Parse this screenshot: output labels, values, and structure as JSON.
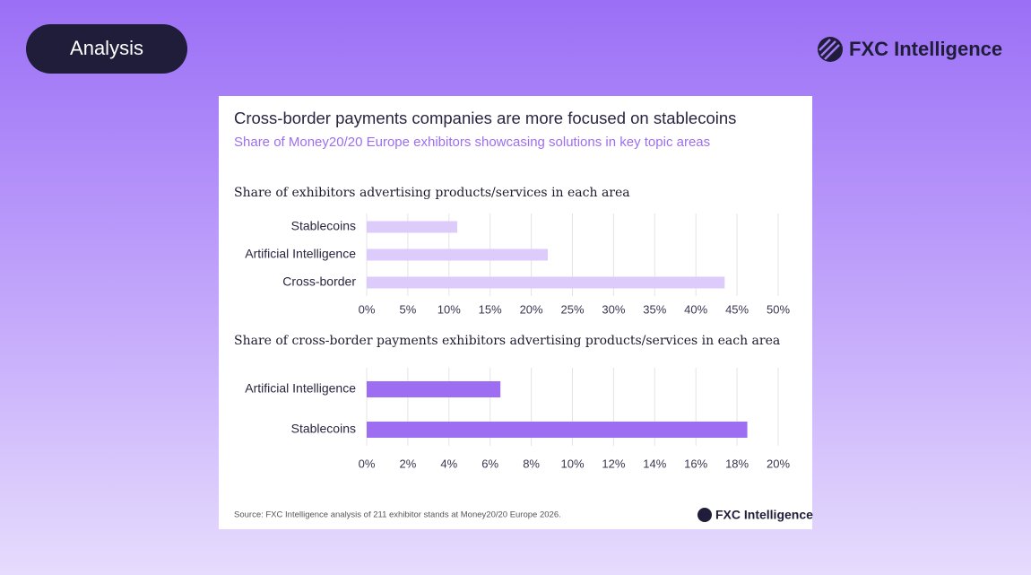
{
  "badge": "Analysis",
  "logo": "FXC Intelligence",
  "header": {
    "title": "Cross-border payments companies are more focused on stablecoins",
    "subtitle": "Share of Money20/20 Europe exhibitors showcasing solutions in key topic areas"
  },
  "chart_data": [
    {
      "type": "hbar",
      "title": "Share of exhibitors advertising products/services in each area",
      "categories": [
        "Stablecoins",
        "Artificial Intelligence",
        "Cross-border"
      ],
      "values": [
        11,
        22,
        43.5
      ],
      "color": "#dccbfb",
      "xlim": [
        0,
        50
      ],
      "xticks": [
        {
          "value": 0,
          "label": "0%"
        },
        {
          "value": 5,
          "label": "5%"
        },
        {
          "value": 10,
          "label": "10%"
        },
        {
          "value": 15,
          "label": "15%"
        },
        {
          "value": 20,
          "label": "20%"
        },
        {
          "value": 25,
          "label": "25%"
        },
        {
          "value": 30,
          "label": "30%"
        },
        {
          "value": 35,
          "label": "35%"
        },
        {
          "value": 40,
          "label": "40%"
        },
        {
          "value": 45,
          "label": "45%"
        },
        {
          "value": 50,
          "label": "50%"
        }
      ],
      "grid": true
    },
    {
      "type": "hbar",
      "title": "Share of cross-border payments exhibitors advertising products/services in each area",
      "categories": [
        "Artificial Intelligence",
        "Stablecoins"
      ],
      "values": [
        6.5,
        18.5
      ],
      "color": "#9d6ef2",
      "xlim": [
        0,
        20
      ],
      "xticks": [
        {
          "value": 0,
          "label": "0%"
        },
        {
          "value": 2,
          "label": "2%"
        },
        {
          "value": 4,
          "label": "4%"
        },
        {
          "value": 6,
          "label": "6%"
        },
        {
          "value": 8,
          "label": "8%"
        },
        {
          "value": 10,
          "label": "10%"
        },
        {
          "value": 12,
          "label": "12%"
        },
        {
          "value": 14,
          "label": "14%"
        },
        {
          "value": 16,
          "label": "16%"
        },
        {
          "value": 18,
          "label": "18%"
        },
        {
          "value": 20,
          "label": "20%"
        }
      ],
      "grid": true
    }
  ],
  "source": "Source: FXC Intelligence analysis of 211 exhibitor stands at Money20/20 Europe 2026.",
  "source_logo": "FXC Intelligence"
}
